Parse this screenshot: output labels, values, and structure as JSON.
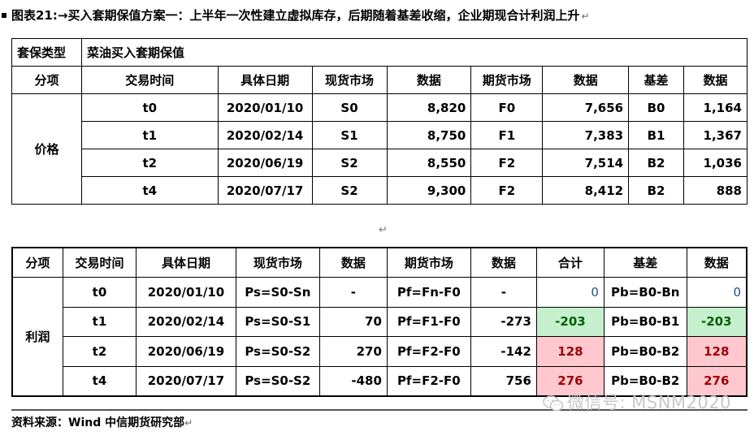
{
  "header": {
    "title": "图表21:→买入套期保值方案一：上半年一次性建立虚拟库存，后期随着基差收缩，企业期现合计利润上升",
    "return_mark": "↵"
  },
  "table1": {
    "type_label": "套保类型",
    "type_value": "菜油买入套期保值",
    "headers": [
      "分项",
      "交易时间",
      "具体日期",
      "现货市场",
      "数据",
      "期货市场",
      "数据",
      "基差",
      "数据"
    ],
    "group_label": "价格",
    "rows": [
      {
        "time": "t0",
        "date": "2020/01/10",
        "spot": "S0",
        "spot_val": "8,820",
        "fut": "F0",
        "fut_val": "7,656",
        "basis": "B0",
        "basis_val": "1,164"
      },
      {
        "time": "t1",
        "date": "2020/02/14",
        "spot": "S1",
        "spot_val": "8,750",
        "fut": "F1",
        "fut_val": "7,383",
        "basis": "B1",
        "basis_val": "1,367"
      },
      {
        "time": "t2",
        "date": "2020/06/19",
        "spot": "S2",
        "spot_val": "8,550",
        "fut": "F2",
        "fut_val": "7,514",
        "basis": "B2",
        "basis_val": "1,036"
      },
      {
        "time": "t4",
        "date": "2020/07/17",
        "spot": "S2",
        "spot_val": "9,300",
        "fut": "F2",
        "fut_val": "8,412",
        "basis": "B2",
        "basis_val": "888"
      }
    ]
  },
  "center_mark": "↵",
  "table2": {
    "headers": [
      "分项",
      "交易时间",
      "具体日期",
      "现货市场",
      "数据",
      "期货市场",
      "数据",
      "合计",
      "基差",
      "数据"
    ],
    "group_label": "利润",
    "rows": [
      {
        "time": "t0",
        "date": "2020/01/10",
        "spot": "Ps=S0-Sn",
        "spot_val": "-",
        "fut": "Pf=Fn-F0",
        "fut_val": "-",
        "total": "0",
        "basis": "Pb=B0-Bn",
        "basis_val": "0"
      },
      {
        "time": "t1",
        "date": "2020/02/14",
        "spot": "Ps=S0-S1",
        "spot_val": "70",
        "fut": "Pf=F1-F0",
        "fut_val": "-273",
        "total": "-203",
        "basis": "Pb=B0-B1",
        "basis_val": "-203"
      },
      {
        "time": "t2",
        "date": "2020/06/19",
        "spot": "Ps=S0-S2",
        "spot_val": "270",
        "fut": "Pf=F2-F0",
        "fut_val": "-142",
        "total": "128",
        "basis": "Pb=B0-B2",
        "basis_val": "128"
      },
      {
        "time": "t4",
        "date": "2020/07/17",
        "spot": "Ps=S0-S2",
        "spot_val": "-480",
        "fut": "Pf=F2-F0",
        "fut_val": "756",
        "total": "276",
        "basis": "Pb=B0-B2",
        "basis_val": "276"
      }
    ]
  },
  "footer": {
    "source": "资料来源：Wind 中信期货研究部",
    "return_mark": "↵"
  },
  "watermark": {
    "text": "微信号: MSNM2020",
    "icon": "wechat-icon"
  },
  "colors": {
    "positive_fill": "#ffc7ce",
    "negative_fill": "#c6efce"
  }
}
